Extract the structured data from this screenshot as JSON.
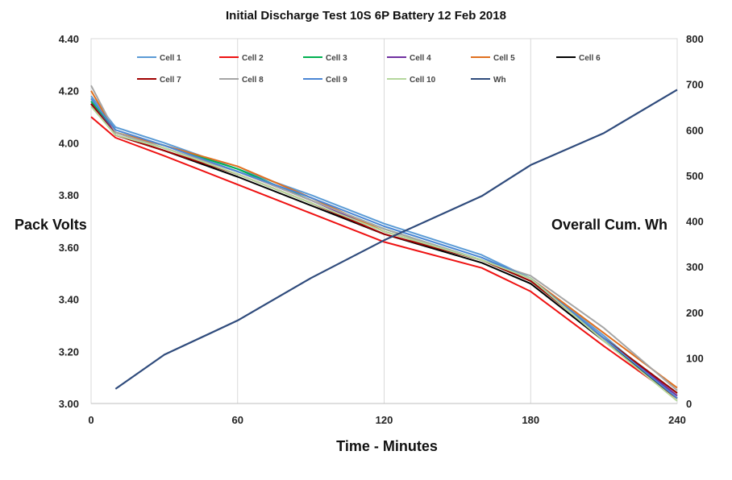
{
  "chart_data": {
    "type": "line",
    "title": "Initial  Discharge Test 10S 6P Battery 12 Feb 2018",
    "xlabel": "Time - Minutes",
    "ylabel": "Pack Volts",
    "y2label": "Overall Cum. Wh",
    "xlim": [
      0,
      240
    ],
    "ylim": [
      3.0,
      4.4
    ],
    "y2lim": [
      0,
      800
    ],
    "x_ticks": [
      "0",
      "60",
      "120",
      "180",
      "240"
    ],
    "y_ticks": [
      "3.00",
      "3.20",
      "3.40",
      "3.60",
      "3.80",
      "4.00",
      "4.20",
      "4.40"
    ],
    "y2_ticks": [
      "0",
      "100",
      "200",
      "300",
      "400",
      "500",
      "600",
      "700",
      "800"
    ],
    "grid": "vertical",
    "legend_position": "top",
    "x": [
      0,
      10,
      30,
      60,
      90,
      120,
      160,
      180,
      210,
      240
    ],
    "series": [
      {
        "name": "Cell 1",
        "axis": "left",
        "color": "#5b9bd5",
        "values": [
          4.18,
          4.06,
          4.0,
          3.9,
          3.8,
          3.69,
          3.57,
          3.48,
          3.26,
          3.02
        ]
      },
      {
        "name": "Cell 2",
        "axis": "left",
        "color": "#ee1111",
        "values": [
          4.1,
          4.02,
          3.95,
          3.84,
          3.73,
          3.62,
          3.52,
          3.43,
          3.22,
          3.02
        ]
      },
      {
        "name": "Cell 3",
        "axis": "left",
        "color": "#00b050",
        "values": [
          4.16,
          4.04,
          3.99,
          3.9,
          3.78,
          3.67,
          3.55,
          3.47,
          3.25,
          3.04
        ]
      },
      {
        "name": "Cell 4",
        "axis": "left",
        "color": "#7030a0",
        "values": [
          4.15,
          4.04,
          3.98,
          3.89,
          3.78,
          3.66,
          3.55,
          3.48,
          3.25,
          3.03
        ]
      },
      {
        "name": "Cell 5",
        "axis": "left",
        "color": "#e0701f",
        "values": [
          4.2,
          4.04,
          3.99,
          3.91,
          3.79,
          3.66,
          3.55,
          3.48,
          3.27,
          3.06
        ]
      },
      {
        "name": "Cell 6",
        "axis": "left",
        "color": "#000000",
        "values": [
          4.15,
          4.03,
          3.97,
          3.87,
          3.76,
          3.65,
          3.54,
          3.46,
          3.24,
          3.02
        ]
      },
      {
        "name": "Cell 7",
        "axis": "left",
        "color": "#a00000",
        "values": [
          4.15,
          4.03,
          3.97,
          3.88,
          3.77,
          3.65,
          3.55,
          3.47,
          3.25,
          3.04
        ]
      },
      {
        "name": "Cell 8",
        "axis": "left",
        "color": "#a5a5a5",
        "values": [
          4.22,
          4.04,
          3.98,
          3.89,
          3.78,
          3.67,
          3.55,
          3.49,
          3.29,
          3.05
        ]
      },
      {
        "name": "Cell 9",
        "axis": "left",
        "color": "#4a86d4",
        "values": [
          4.17,
          4.05,
          3.99,
          3.89,
          3.79,
          3.68,
          3.56,
          3.48,
          3.25,
          3.02
        ]
      },
      {
        "name": "Cell 10",
        "axis": "left",
        "color": "#b4d79c",
        "values": [
          4.14,
          4.03,
          3.98,
          3.88,
          3.77,
          3.66,
          3.55,
          3.48,
          3.24,
          3.01
        ]
      },
      {
        "name": "Wh",
        "axis": "right",
        "color": "#2f4b7c",
        "x": [
          10,
          30,
          60,
          90,
          120,
          160,
          180,
          210,
          240
        ],
        "values": [
          32,
          107,
          182,
          275,
          358,
          455,
          523,
          593,
          688
        ]
      }
    ]
  }
}
